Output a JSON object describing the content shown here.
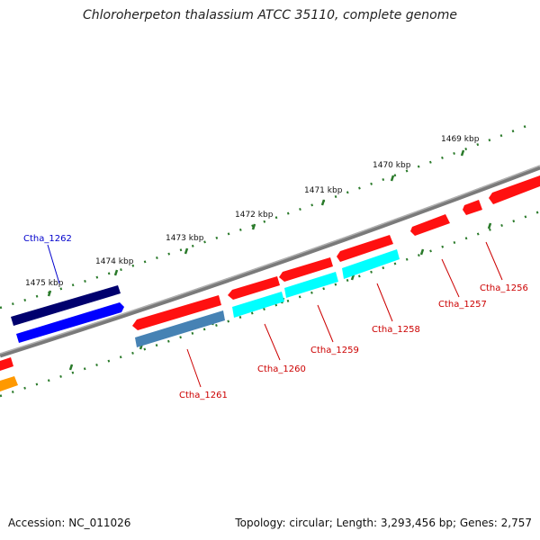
{
  "title": "Chloroherpeton thalassium ATCC 35110, complete genome",
  "footer": {
    "accession": "Accession: NC_011026",
    "summary": "Topology: circular; Length: 3,293,456 bp; Genes: 2,757"
  },
  "ticks": [
    "1469 kbp",
    "1470 kbp",
    "1471 kbp",
    "1472 kbp",
    "1473 kbp",
    "1474 kbp",
    "1475 kbp"
  ],
  "genes": [
    {
      "label": "Ctha_1262",
      "color": "#0000cc"
    },
    {
      "label": "Ctha_1261",
      "color": "#cc0000"
    },
    {
      "label": "Ctha_1260",
      "color": "#cc0000"
    },
    {
      "label": "Ctha_1259",
      "color": "#cc0000"
    },
    {
      "label": "Ctha_1258",
      "color": "#cc0000"
    },
    {
      "label": "Ctha_1257",
      "color": "#cc0000"
    },
    {
      "label": "Ctha_1256",
      "color": "#cc0000"
    }
  ],
  "colors": {
    "backbone": "#7a7a7a",
    "tick_dots": "#2a7a2a",
    "forward_red": "#ff1010",
    "cyan": "#00ffff",
    "steel_blue": "#4682b4",
    "navy": "#00006e",
    "blue": "#0000ff",
    "orange": "#ff9900"
  }
}
